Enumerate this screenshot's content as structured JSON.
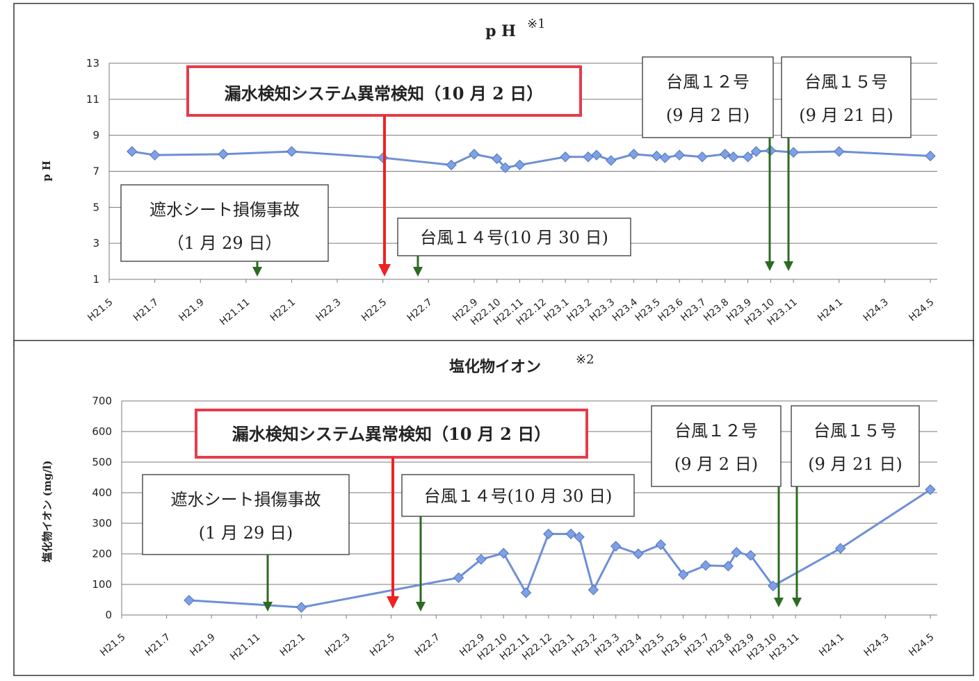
{
  "chart_data": [
    {
      "type": "line",
      "title": "p H",
      "title_note": "※1",
      "ylabel": "p H",
      "ylim": [
        1,
        13
      ],
      "yticks": [
        1,
        3,
        5,
        7,
        9,
        11,
        13
      ],
      "grid": true,
      "categories": [
        "H21.5",
        "H21.7",
        "H21.9",
        "H21.11",
        "H22.1",
        "H22.3",
        "H22.5",
        "H22.7",
        "H22.9",
        "H22.10",
        "H22.11",
        "H22.12",
        "H23.1",
        "H23.2",
        "H23.3",
        "H23.4",
        "H23.5",
        "H23.6",
        "H23.7",
        "H23.8",
        "H23.9",
        "H23.10",
        "H23.11",
        "H24.1",
        "H24.3",
        "H24.5"
      ],
      "series": [
        {
          "color": "#6d8fd6",
          "points": [
            {
              "x": "H21.6",
              "y": 8.1
            },
            {
              "x": "H21.7",
              "y": 7.9
            },
            {
              "x": "H21.10",
              "y": 7.95
            },
            {
              "x": "H22.1",
              "y": 8.1
            },
            {
              "x": "H22.5",
              "y": 7.75
            },
            {
              "x": "H22.8",
              "y": 7.35
            },
            {
              "x": "H22.9",
              "y": 7.95
            },
            {
              "x": "H22.10",
              "y": 7.7
            },
            {
              "x": "H22.10",
              "y": 7.2
            },
            {
              "x": "H22.11",
              "y": 7.35
            },
            {
              "x": "H23.1",
              "y": 7.8
            },
            {
              "x": "H23.2",
              "y": 7.8
            },
            {
              "x": "H23.2",
              "y": 7.9
            },
            {
              "x": "H23.3",
              "y": 7.6
            },
            {
              "x": "H23.4",
              "y": 7.95
            },
            {
              "x": "H23.5",
              "y": 7.85
            },
            {
              "x": "H23.5",
              "y": 7.75
            },
            {
              "x": "H23.6",
              "y": 7.9
            },
            {
              "x": "H23.7",
              "y": 7.8
            },
            {
              "x": "H23.8",
              "y": 7.95
            },
            {
              "x": "H23.8",
              "y": 7.8
            },
            {
              "x": "H23.9",
              "y": 7.8
            },
            {
              "x": "H23.9",
              "y": 8.1
            },
            {
              "x": "H23.10",
              "y": 8.15
            },
            {
              "x": "H23.11",
              "y": 8.05
            },
            {
              "x": "H24.1",
              "y": 8.1
            },
            {
              "x": "H24.5",
              "y": 7.85
            }
          ]
        }
      ],
      "annotations": {
        "red_box": "漏水検知システム異常検知（10 月 2 日）",
        "box_sheet_line1": "遮水シート損傷事故",
        "box_sheet_line2": "（1 月 29 日）",
        "box_t14": "台風１４号(10 月 30 日)",
        "box_t12_line1": "台風１２号",
        "box_t12_line2": "(9 月 2 日)",
        "box_t15_line1": "台風１５号",
        "box_t15_line2": "(9 月 21 日)"
      }
    },
    {
      "type": "line",
      "title": "塩化物イオン",
      "title_note": "※2",
      "ylabel": "塩化物イオン (mg/l)",
      "ylim": [
        0,
        700
      ],
      "yticks": [
        0,
        100,
        200,
        300,
        400,
        500,
        600,
        700
      ],
      "grid": true,
      "categories": [
        "H21.5",
        "H21.7",
        "H21.9",
        "H21.11",
        "H22.1",
        "H22.3",
        "H22.5",
        "H22.7",
        "H22.9",
        "H22.10",
        "H22.11",
        "H22.12",
        "H23.1",
        "H23.2",
        "H23.3",
        "H23.4",
        "H23.5",
        "H23.6",
        "H23.7",
        "H23.8",
        "H23.9",
        "H23.10",
        "H23.11",
        "H24.1",
        "H24.3",
        "H24.5"
      ],
      "series": [
        {
          "color": "#6d8fd6",
          "points": [
            {
              "x": "H21.8",
              "y": 48
            },
            {
              "x": "H22.1",
              "y": 25
            },
            {
              "x": "H22.8",
              "y": 122
            },
            {
              "x": "H22.9",
              "y": 182
            },
            {
              "x": "H22.10",
              "y": 202
            },
            {
              "x": "H22.11",
              "y": 73
            },
            {
              "x": "H22.12",
              "y": 265
            },
            {
              "x": "H23.1",
              "y": 265
            },
            {
              "x": "H23.1",
              "y": 255
            },
            {
              "x": "H23.2",
              "y": 82
            },
            {
              "x": "H23.3",
              "y": 225
            },
            {
              "x": "H23.4",
              "y": 200
            },
            {
              "x": "H23.5",
              "y": 230
            },
            {
              "x": "H23.6",
              "y": 132
            },
            {
              "x": "H23.7",
              "y": 162
            },
            {
              "x": "H23.8",
              "y": 160
            },
            {
              "x": "H23.8",
              "y": 205
            },
            {
              "x": "H23.9",
              "y": 195
            },
            {
              "x": "H23.10",
              "y": 95
            },
            {
              "x": "H24.1",
              "y": 218
            },
            {
              "x": "H24.5",
              "y": 410
            }
          ]
        }
      ],
      "annotations": {
        "red_box": "漏水検知システム異常検知（10 月 2 日）",
        "box_sheet_line1": "遮水シート損傷事故",
        "box_sheet_line2": "(1 月 29 日)",
        "box_t14": "台風１４号(10 月 30 日)",
        "box_t12_line1": "台風１２号",
        "box_t12_line2": "(9 月 2 日)",
        "box_t15_line1": "台風１５号",
        "box_t15_line2": "(9 月 21 日)"
      }
    }
  ]
}
